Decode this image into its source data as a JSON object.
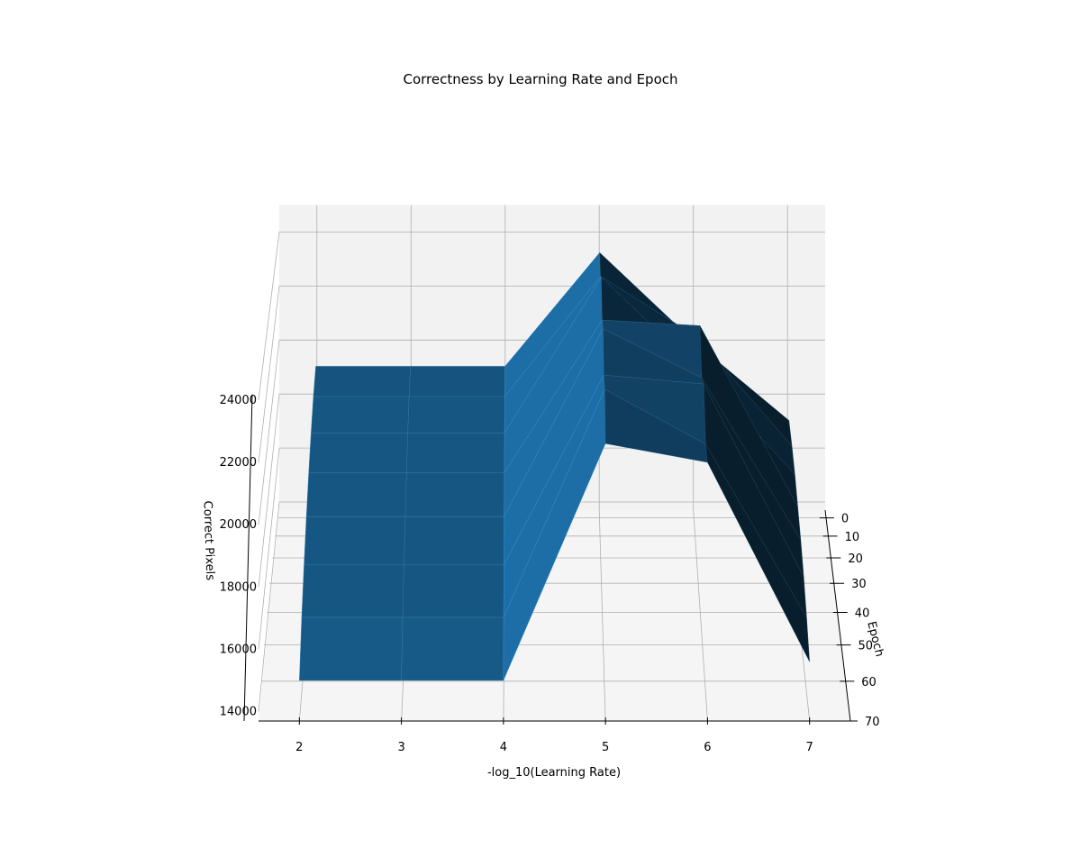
{
  "chart_data": {
    "type": "surface",
    "title": "Correctness by Learning Rate and Epoch",
    "xlabel": "-log_10(Learning Rate)",
    "ylabel": "Epoch",
    "zlabel": "Correct Pixels",
    "x_ticks": [
      2,
      3,
      4,
      5,
      6,
      7
    ],
    "y_ticks": [
      0,
      10,
      20,
      30,
      40,
      50,
      60,
      70
    ],
    "z_ticks": [
      14000,
      16000,
      18000,
      20000,
      22000,
      24000
    ],
    "x_tick_labels": [
      "2",
      "3",
      "4",
      "5",
      "6",
      "7"
    ],
    "y_tick_labels": [
      "0",
      "10",
      "20",
      "30",
      "40",
      "50",
      "60",
      "70"
    ],
    "z_tick_labels": [
      "14000",
      "16000",
      "18000",
      "20000",
      "22000",
      "24000"
    ],
    "xlim": [
      1.6,
      7.4
    ],
    "ylim": [
      -5,
      70
    ],
    "zlim": [
      13700,
      25000
    ],
    "grid": true,
    "surface_color": "#1f77b4",
    "x": [
      2,
      3,
      4,
      5,
      6,
      7
    ],
    "epoch": [
      0,
      10,
      20,
      30,
      40,
      50,
      60,
      70
    ],
    "z_rows": [
      [
        19300,
        19300,
        19300,
        23500,
        20200,
        17300
      ],
      [
        18800,
        18800,
        18800,
        23200,
        21000,
        17000
      ],
      [
        18200,
        18200,
        18200,
        23800,
        20500,
        16700
      ],
      [
        17600,
        17600,
        17600,
        23000,
        22800,
        16400
      ],
      [
        17000,
        17000,
        17000,
        23500,
        21800,
        16200
      ],
      [
        16400,
        16400,
        16400,
        22800,
        22500,
        16000
      ],
      [
        15800,
        15800,
        15800,
        23300,
        21500,
        15800
      ],
      [
        15000,
        15000,
        15000,
        22600,
        22000,
        15600
      ]
    ]
  }
}
